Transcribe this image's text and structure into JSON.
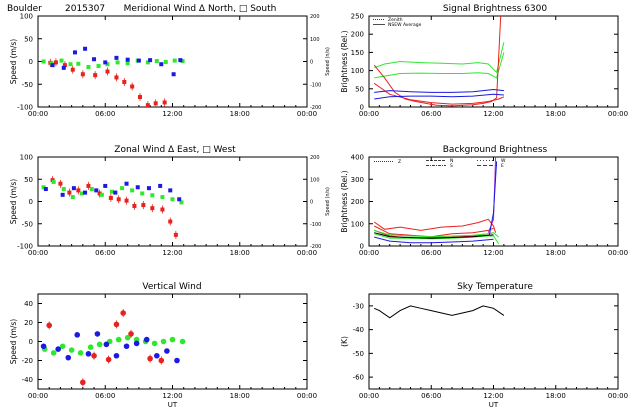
{
  "figure": {
    "top_left": [
      "Boulder",
      "2015307"
    ],
    "xlabel": "UT",
    "xticks": [
      "00:00",
      "06:00",
      "12:00",
      "18:00",
      "00:00"
    ]
  },
  "colors": {
    "red": "#e8221e",
    "green": "#2ee82e",
    "blue": "#1a1ae0",
    "black": "#000000",
    "purple": "#9a2be0"
  },
  "chart_data": [
    {
      "id": "meridional",
      "type": "scatter",
      "title": "Meridional Wind  Δ North, □ South",
      "ylabel": "Speed (m/s)",
      "ylabel_right": "Speed (n/s)",
      "xlim": [
        0,
        24
      ],
      "ylim": [
        -100,
        100
      ],
      "yticks": [
        "100",
        "50",
        "0",
        "-50",
        "-100"
      ],
      "yticks_right": [
        "200",
        "100",
        "0",
        "-100",
        "-200"
      ],
      "legend": [],
      "series": [
        {
          "color": "red",
          "x": [
            1.1,
            1.6,
            2.4,
            3.1,
            4.0,
            5.1,
            6.2,
            7.0,
            7.7,
            8.4,
            9.1,
            9.8,
            10.5,
            11.3
          ],
          "y": [
            -3,
            -2,
            -8,
            -18,
            -28,
            -30,
            -22,
            -35,
            -45,
            -55,
            -78,
            -96,
            -92,
            -90
          ]
        },
        {
          "color": "green",
          "x": [
            0.5,
            1.2,
            2.1,
            2.9,
            3.6,
            4.5,
            5.4,
            6.2,
            7.1,
            8.0,
            8.9,
            9.8,
            10.6,
            11.4,
            12.2,
            12.9
          ],
          "y": [
            0,
            -4,
            2,
            -6,
            -5,
            -12,
            -10,
            -6,
            -2,
            -4,
            2,
            -2,
            1,
            -1,
            2,
            1
          ]
        },
        {
          "color": "blue",
          "x": [
            1.3,
            2.3,
            3.3,
            4.2,
            5.0,
            6.0,
            7.0,
            8.0,
            9.0,
            10.0,
            11.0,
            12.1,
            12.7
          ],
          "y": [
            -8,
            -14,
            20,
            28,
            5,
            -2,
            8,
            4,
            2,
            3,
            -6,
            -28,
            3
          ]
        }
      ]
    },
    {
      "id": "signal",
      "type": "line",
      "title": "Signal Brightness    6300",
      "ylabel": "Brightness (Rel.)",
      "xlim": [
        0,
        24
      ],
      "ylim": [
        0,
        250
      ],
      "yticks": [
        "250",
        "200",
        "150",
        "100",
        "50",
        "0"
      ],
      "legend": [
        "Zenith",
        "NSEW Average"
      ],
      "series": [
        {
          "color": "green",
          "x": [
            0.5,
            1.5,
            3.0,
            5.0,
            7.0,
            9.0,
            10.5,
            11.5,
            12.3,
            13.0
          ],
          "y": [
            108,
            118,
            125,
            122,
            120,
            118,
            122,
            118,
            95,
            178
          ]
        },
        {
          "color": "green",
          "x": [
            0.5,
            1.5,
            3.0,
            5.0,
            7.0,
            9.0,
            10.5,
            11.5,
            12.3,
            13.0
          ],
          "y": [
            80,
            85,
            92,
            93,
            92,
            92,
            94,
            92,
            80,
            150
          ]
        },
        {
          "color": "red",
          "x": [
            0.5,
            1.5,
            2.5,
            3.5,
            4.5,
            5.5,
            6.5,
            8.0,
            10.0,
            11.0,
            11.8,
            12.3,
            12.7,
            13.0
          ],
          "y": [
            115,
            80,
            40,
            22,
            15,
            10,
            5,
            3,
            6,
            10,
            15,
            25,
            255,
            255
          ]
        },
        {
          "color": "red",
          "x": [
            0.5,
            2.0,
            4.0,
            6.0,
            8.0,
            10.0,
            11.5,
            12.5,
            13.0
          ],
          "y": [
            65,
            35,
            20,
            12,
            8,
            10,
            15,
            22,
            28
          ]
        },
        {
          "color": "blue",
          "x": [
            0.5,
            2.0,
            4.0,
            6.0,
            8.0,
            10.0,
            12.0,
            13.0
          ],
          "y": [
            40,
            45,
            42,
            40,
            40,
            42,
            48,
            45
          ]
        },
        {
          "color": "blue",
          "x": [
            0.5,
            2.0,
            4.0,
            6.0,
            8.0,
            10.0,
            12.0,
            13.0
          ],
          "y": [
            22,
            28,
            30,
            30,
            28,
            30,
            35,
            33
          ]
        }
      ]
    },
    {
      "id": "zonal",
      "type": "scatter",
      "title": "Zonal Wind    Δ East, □ West",
      "ylabel": "Speed (m/s)",
      "ylabel_right": "Speed (n/s)",
      "xlim": [
        0,
        24
      ],
      "ylim": [
        -100,
        100
      ],
      "yticks": [
        "100",
        "50",
        "0",
        "-50",
        "-100"
      ],
      "yticks_right": [
        "200",
        "100",
        "0",
        "-100",
        "-200"
      ],
      "legend": [],
      "series": [
        {
          "color": "red",
          "x": [
            1.3,
            2.0,
            2.8,
            3.6,
            4.5,
            5.5,
            6.5,
            7.2,
            7.9,
            8.6,
            9.4,
            10.2,
            11.1,
            11.8,
            12.3
          ],
          "y": [
            48,
            40,
            20,
            25,
            35,
            18,
            8,
            5,
            2,
            -10,
            -8,
            -15,
            -18,
            -45,
            -75
          ]
        },
        {
          "color": "green",
          "x": [
            0.5,
            1.4,
            2.3,
            3.1,
            3.9,
            4.8,
            5.7,
            6.6,
            7.5,
            8.4,
            9.3,
            10.2,
            11.1,
            12.0,
            12.8
          ],
          "y": [
            32,
            44,
            28,
            10,
            18,
            28,
            15,
            22,
            30,
            25,
            18,
            14,
            10,
            5,
            -2
          ]
        },
        {
          "color": "blue",
          "x": [
            0.7,
            2.2,
            3.2,
            4.2,
            5.2,
            6.0,
            6.9,
            7.9,
            8.9,
            9.9,
            10.9,
            11.8,
            12.6
          ],
          "y": [
            28,
            15,
            30,
            20,
            25,
            35,
            20,
            40,
            32,
            30,
            35,
            25,
            5
          ]
        }
      ]
    },
    {
      "id": "background",
      "type": "line",
      "title": "Background Brightness",
      "ylabel": "Brightness (Rel.)",
      "xlim": [
        0,
        24
      ],
      "ylim": [
        0,
        400
      ],
      "yticks": [
        "400",
        "300",
        "200",
        "100",
        "0"
      ],
      "legend": [
        "Z",
        "N",
        "S",
        "W",
        "E"
      ],
      "series": [
        {
          "color": "red",
          "x": [
            0.5,
            1.5,
            3.0,
            5.0,
            7.0,
            9.0,
            10.5,
            11.5,
            12.0,
            12.2
          ],
          "y": [
            108,
            75,
            85,
            70,
            85,
            90,
            105,
            120,
            90,
            60
          ]
        },
        {
          "color": "red",
          "x": [
            0.5,
            2.0,
            4.0,
            6.0,
            8.0,
            10.0,
            11.5,
            12.0
          ],
          "y": [
            90,
            55,
            48,
            42,
            55,
            60,
            70,
            80
          ]
        },
        {
          "color": "red",
          "x": [
            0.5,
            2.0,
            4.0,
            6.0,
            8.0,
            10.0,
            11.5,
            12.0
          ],
          "y": [
            70,
            45,
            35,
            38,
            40,
            45,
            55,
            60
          ]
        },
        {
          "color": "green",
          "x": [
            0.5,
            2.0,
            4.0,
            6.0,
            8.0,
            10.0,
            11.5,
            12.0,
            12.5
          ],
          "y": [
            70,
            50,
            45,
            42,
            45,
            48,
            55,
            60,
            40
          ]
        },
        {
          "color": "green",
          "x": [
            0.5,
            2.0,
            4.0,
            6.0,
            8.0,
            10.0,
            11.5,
            12.0,
            12.5
          ],
          "y": [
            55,
            35,
            35,
            32,
            35,
            40,
            45,
            45,
            10
          ]
        },
        {
          "color": "blue",
          "x": [
            0.5,
            2.0,
            4.0,
            6.0,
            8.0,
            10.0,
            11.5,
            12.0
          ],
          "y": [
            40,
            22,
            15,
            15,
            18,
            22,
            28,
            30
          ]
        },
        {
          "color": "black",
          "x": [
            0.5,
            2.0,
            4.0,
            6.0,
            8.0,
            10.0,
            11.5,
            12.0
          ],
          "y": [
            60,
            42,
            38,
            35,
            38,
            42,
            48,
            50
          ]
        },
        {
          "color": "purple",
          "x": [
            11.5,
            12.0,
            12.2
          ],
          "y": [
            60,
            120,
            400
          ]
        },
        {
          "color": "blue",
          "x": [
            11.6,
            12.0,
            12.3
          ],
          "y": [
            50,
            150,
            380
          ]
        }
      ]
    },
    {
      "id": "vertical",
      "type": "scatter",
      "title": "Vertical Wind",
      "ylabel": "Speed (m/s)",
      "xlim": [
        0,
        24
      ],
      "ylim": [
        -50,
        50
      ],
      "yticks": [
        "40",
        "20",
        "0",
        "-20",
        "-40"
      ],
      "legend": [],
      "series": [
        {
          "color": "red",
          "x": [
            1.0,
            4.0,
            5.0,
            6.3,
            7.0,
            7.6,
            8.3,
            10.0,
            11.0
          ],
          "y": [
            17,
            -43,
            -15,
            -19,
            18,
            30,
            8,
            -18,
            -20
          ]
        },
        {
          "color": "green",
          "x": [
            0.6,
            1.4,
            2.2,
            3.0,
            3.8,
            4.7,
            5.5,
            6.4,
            7.2,
            8.0,
            8.8,
            9.6,
            10.4,
            11.2,
            12.0,
            12.9
          ],
          "y": [
            -8,
            -12,
            -5,
            -9,
            -12,
            -6,
            -3,
            0,
            2,
            4,
            2,
            0,
            -2,
            0,
            2,
            0
          ]
        },
        {
          "color": "blue",
          "x": [
            0.5,
            1.8,
            2.7,
            3.5,
            4.5,
            5.3,
            6.1,
            7.0,
            7.9,
            8.8,
            9.7,
            10.6,
            11.5,
            12.4
          ],
          "y": [
            -5,
            -8,
            -17,
            7,
            -13,
            8,
            -3,
            -15,
            -5,
            -2,
            2,
            -15,
            -10,
            -20
          ]
        }
      ]
    },
    {
      "id": "sky",
      "type": "line",
      "title": "Sky Temperature",
      "ylabel": "(K)",
      "xlim": [
        0,
        24
      ],
      "ylim": [
        -65,
        -25
      ],
      "yticks": [
        "-30",
        "-40",
        "-50",
        "-60"
      ],
      "legend": [],
      "series": [
        {
          "color": "black",
          "x": [
            0.5,
            1.0,
            2.0,
            3.0,
            4.0,
            5.0,
            6.0,
            7.0,
            8.0,
            9.0,
            10.0,
            11.0,
            12.0,
            13.0
          ],
          "y": [
            -31,
            -32,
            -35,
            -32,
            -30,
            -31,
            -32,
            -33,
            -34,
            -33,
            -32,
            -30,
            -31,
            -34
          ]
        }
      ]
    }
  ]
}
